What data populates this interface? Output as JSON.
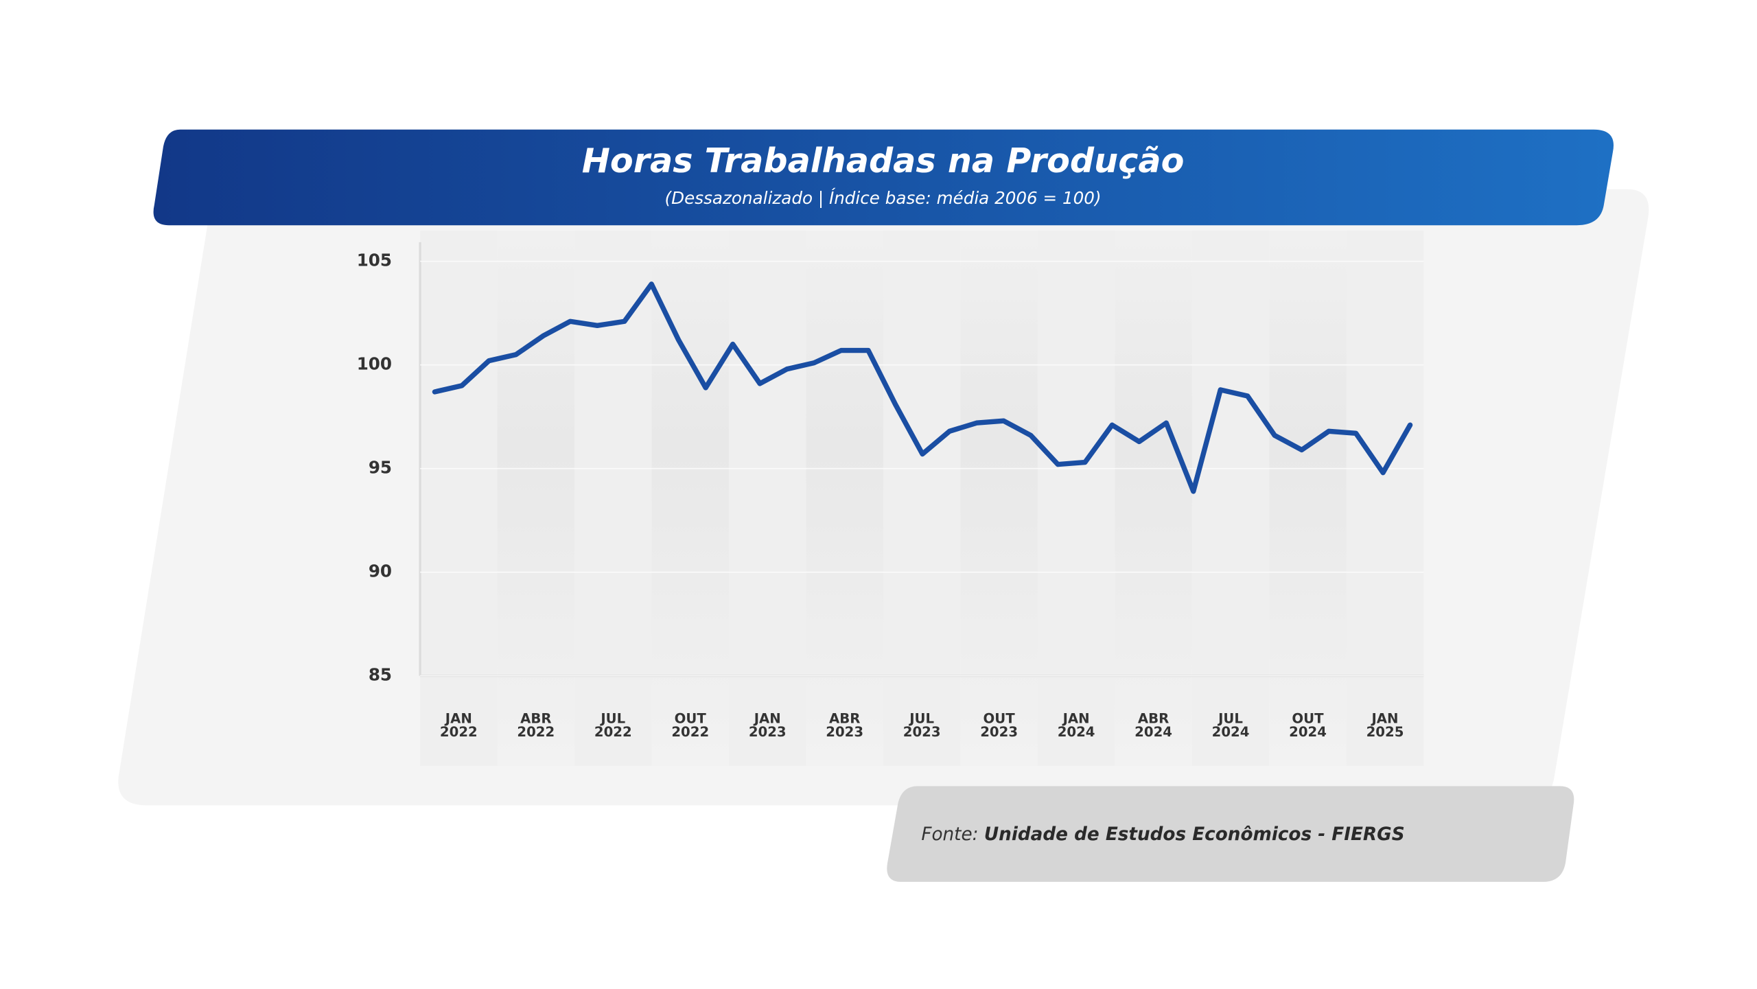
{
  "chart_data": {
    "type": "line",
    "title": "Horas Trabalhadas na Produção",
    "subtitle": "(Dessazonalizado | Índice base: média 2006 = 100)",
    "source_label": "Fonte:",
    "source_text": "Unidade de Estudos Econômicos - FIERGS",
    "categories": [
      "JAN 2022",
      null,
      null,
      "ABR 2022",
      null,
      null,
      "JUL 2022",
      null,
      null,
      "OUT 2022",
      null,
      null,
      "JAN 2023",
      null,
      null,
      "ABR 2023",
      null,
      null,
      "JUL 2023",
      null,
      null,
      "OUT 2023",
      null,
      null,
      "JAN 2024",
      null,
      null,
      "ABR 2024",
      null,
      null,
      "JUL 2024",
      null,
      null,
      "OUT 2024",
      null,
      null,
      "JAN 2025"
    ],
    "series": [
      {
        "name": "Horas Trabalhadas na Produção",
        "color": "#1a4ea3",
        "values": [
          98.7,
          99.0,
          100.2,
          100.5,
          101.4,
          102.1,
          101.9,
          102.1,
          103.9,
          101.2,
          98.9,
          101.0,
          99.1,
          99.8,
          100.1,
          100.7,
          100.7,
          98.1,
          95.7,
          96.8,
          97.2,
          97.3,
          96.6,
          95.2,
          95.3,
          97.1,
          96.3,
          97.2,
          93.9,
          98.8,
          98.5,
          96.6,
          95.9,
          96.8,
          96.7,
          94.8,
          97.1
        ]
      }
    ],
    "ylim": [
      85,
      105
    ],
    "yticks": [
      85,
      90,
      95,
      100,
      105
    ],
    "grid": true
  }
}
